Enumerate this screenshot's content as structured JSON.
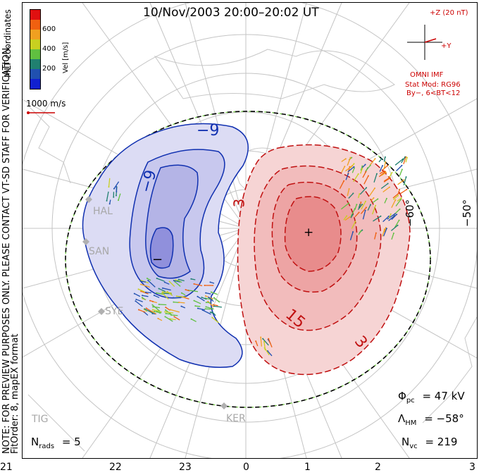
{
  "title": "10/Nov/2003 20:00–20:02 UT",
  "coords_label": "MLT coordinates",
  "preview_note": "NOTE: FOR PREVIEW PURPOSES ONLY. PLEASE CONTACT VT-SD STAFF FOR VERIFICATION.",
  "fit_note": "FitOrder: 8, mapEX format",
  "colorbar": {
    "label": "Vel [m/s]",
    "ticks": [
      "600",
      "400",
      "200"
    ],
    "colors": [
      "#e01010",
      "#f06010",
      "#f0a020",
      "#c8d020",
      "#60c040",
      "#208070",
      "#2050b0",
      "#1020d0"
    ]
  },
  "vector_scale": "1000 m/s",
  "imf": {
    "z_label": "+Z (20 nT)",
    "y_label": "+Y",
    "source": "OMNI IMF",
    "stat_mod": "Stat Mod: RG96",
    "condition": "By−, 6<BT<12"
  },
  "lat_labels": [
    "−60°",
    "−50°"
  ],
  "contour_labels": {
    "neg_outer": "−9",
    "neg_inner": "−9",
    "neg_min": "−",
    "pos_a": "3",
    "pos_b": "15",
    "pos_c": "3",
    "pos_max": "+"
  },
  "radars": [
    "HAL",
    "SAN",
    "SYE",
    "TIG",
    "KER"
  ],
  "stats": {
    "phi_label": "Φ",
    "phi_sub": "pc",
    "phi_value": "= 47 kV",
    "lambda_label": "Λ",
    "lambda_sub": "HM",
    "lambda_value": "= −58°",
    "nvc_label": "N",
    "nvc_sub": "vc",
    "nvc_value": "= 219"
  },
  "nrads": {
    "label": "N",
    "sub": "rads",
    "value": "= 5"
  },
  "mlt_ticks": [
    "21",
    "22",
    "23",
    "0",
    "1",
    "2",
    "3"
  ]
}
